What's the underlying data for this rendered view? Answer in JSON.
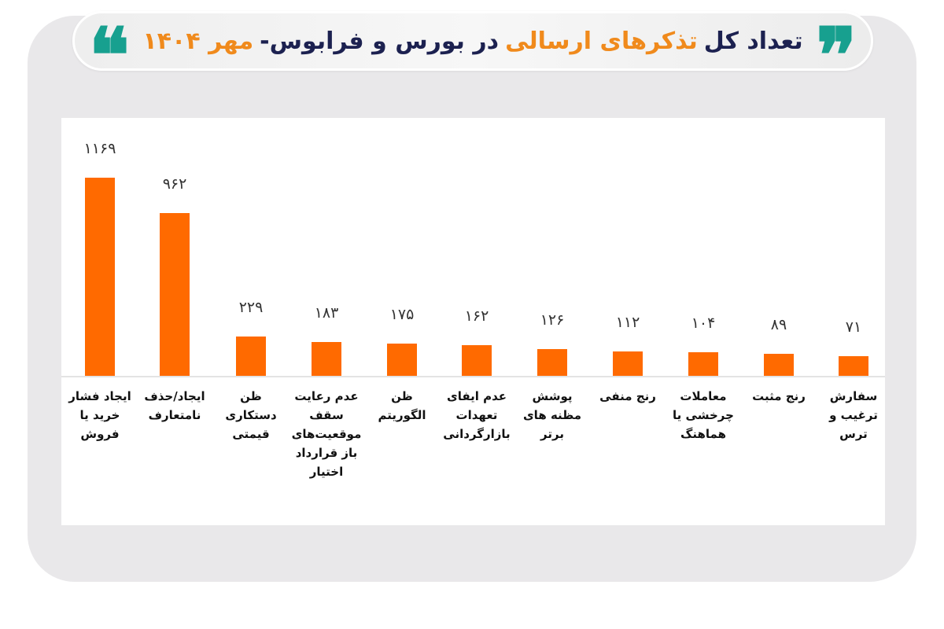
{
  "title": {
    "parts": [
      {
        "text": "تعداد کل",
        "color": "navy"
      },
      {
        "text": "تذکرهای ارسالی",
        "color": "orange"
      },
      {
        "text": "در بورس و فرابوس-",
        "color": "navy"
      },
      {
        "text": "مهر ۱۴۰۴",
        "color": "orange"
      }
    ],
    "quote_right": "❞",
    "quote_left": "❝"
  },
  "colors": {
    "bar": "#ff6a00",
    "title_navy": "#1c2150",
    "title_orange": "#f08a1c",
    "quote_teal": "#17a08f",
    "frame": "#e9e8ea"
  },
  "chart_data": {
    "type": "bar",
    "title": "تعداد کل تذکرهای ارسالی در بورس و فرابوس- مهر ۱۴۰۴",
    "xlabel": "",
    "ylabel": "",
    "grid": false,
    "legend": null,
    "ylim": [
      0,
      1200
    ],
    "categories": [
      "ایجاد فشار خرید یا فروش",
      "ایجاد/حذف نامتعارف",
      "ظن دستکاری قیمتی",
      "عدم رعایت سقف موقعیت‌های باز قرارداد اختیار",
      "ظن الگوریتم",
      "عدم ایفای تعهدات بازارگردانی",
      "پوشش مظنه های برتر",
      "رنج منفی",
      "معاملات چرخشی یا هماهنگ",
      "رنج مثبت",
      "سفارش ترغیب و ترس"
    ],
    "values": [
      1169,
      962,
      229,
      183,
      175,
      162,
      126,
      112,
      104,
      89,
      71
    ],
    "value_labels": [
      "۱۱۶۹",
      "۹۶۲",
      "۲۲۹",
      "۱۸۳",
      "۱۷۵",
      "۱۶۲",
      "۱۲۶",
      "۱۱۲",
      "۱۰۴",
      "۸۹",
      "۷۱"
    ]
  },
  "bars": [
    {
      "value": "۱۱۶۹",
      "label_lines": [
        "ایجاد فشار",
        "خرید یا",
        "فروش"
      ]
    },
    {
      "value": "۹۶۲",
      "label_lines": [
        "ایجاد/حذف",
        "نامتعارف"
      ]
    },
    {
      "value": "۲۲۹",
      "label_lines": [
        "ظن",
        "دستکاری",
        "قیمتی"
      ]
    },
    {
      "value": "۱۸۳",
      "label_lines": [
        "عدم رعایت",
        "سقف",
        "موقعیت‌های",
        "باز قرارداد",
        "اختیار"
      ]
    },
    {
      "value": "۱۷۵",
      "label_lines": [
        "ظن",
        "الگوریتم"
      ]
    },
    {
      "value": "۱۶۲",
      "label_lines": [
        "عدم ایفای",
        "تعهدات",
        "بازارگردانی"
      ]
    },
    {
      "value": "۱۲۶",
      "label_lines": [
        "پوشش",
        "مظنه های",
        "برتر"
      ]
    },
    {
      "value": "۱۱۲",
      "label_lines": [
        "رنج منفی"
      ]
    },
    {
      "value": "۱۰۴",
      "label_lines": [
        "معاملات",
        "چرخشی یا",
        "هماهنگ"
      ]
    },
    {
      "value": "۸۹",
      "label_lines": [
        "رنج مثبت"
      ]
    },
    {
      "value": "۷۱",
      "label_lines": [
        "سفارش",
        "ترغیب و",
        "ترس"
      ]
    }
  ]
}
